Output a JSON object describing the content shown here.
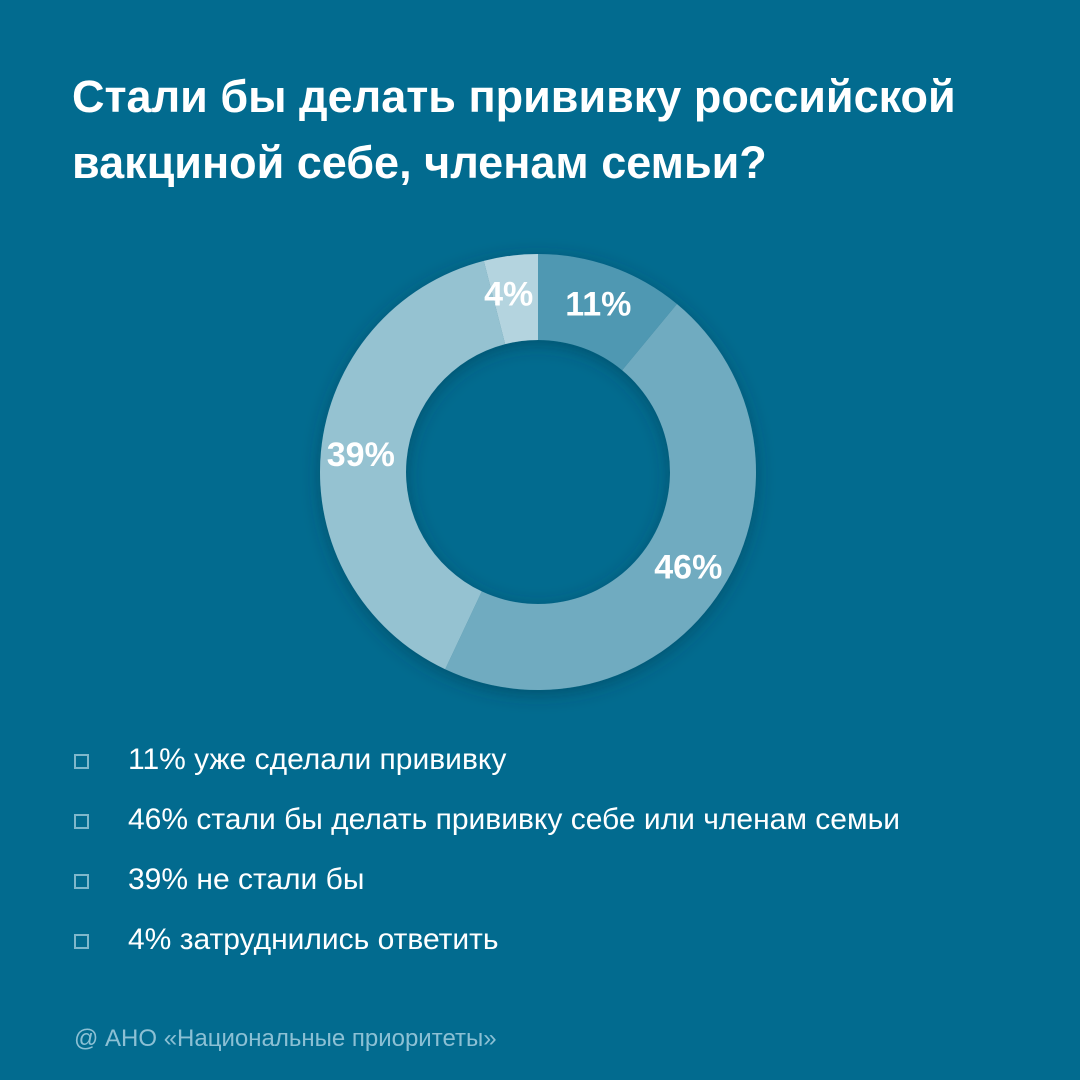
{
  "title_lines": [
    "Стали бы делать прививку российской",
    "вакциной себе, членам семьи?"
  ],
  "chart_data": {
    "type": "pie",
    "style": "donut",
    "categories": [
      "уже сделали прививку",
      "стали бы делать прививку себе или членам семьи",
      "не стали бы",
      "затруднились ответить"
    ],
    "values": [
      11,
      46,
      39,
      4
    ],
    "unit": "%",
    "data_labels": [
      "11%",
      "46%",
      "39%",
      "4%"
    ],
    "colors": [
      "#4f98b2",
      "#6fabc0",
      "#95c2d1",
      "#b4d4df"
    ],
    "legend_placement": "bottom-left",
    "legend_entries": [
      "11% уже сделали прививку",
      "46% стали бы делать прививку себе или членам семьи",
      "39% не стали бы",
      "4% затруднились ответить"
    ]
  },
  "footer": "@ АНО «Национальные приоритеты»"
}
